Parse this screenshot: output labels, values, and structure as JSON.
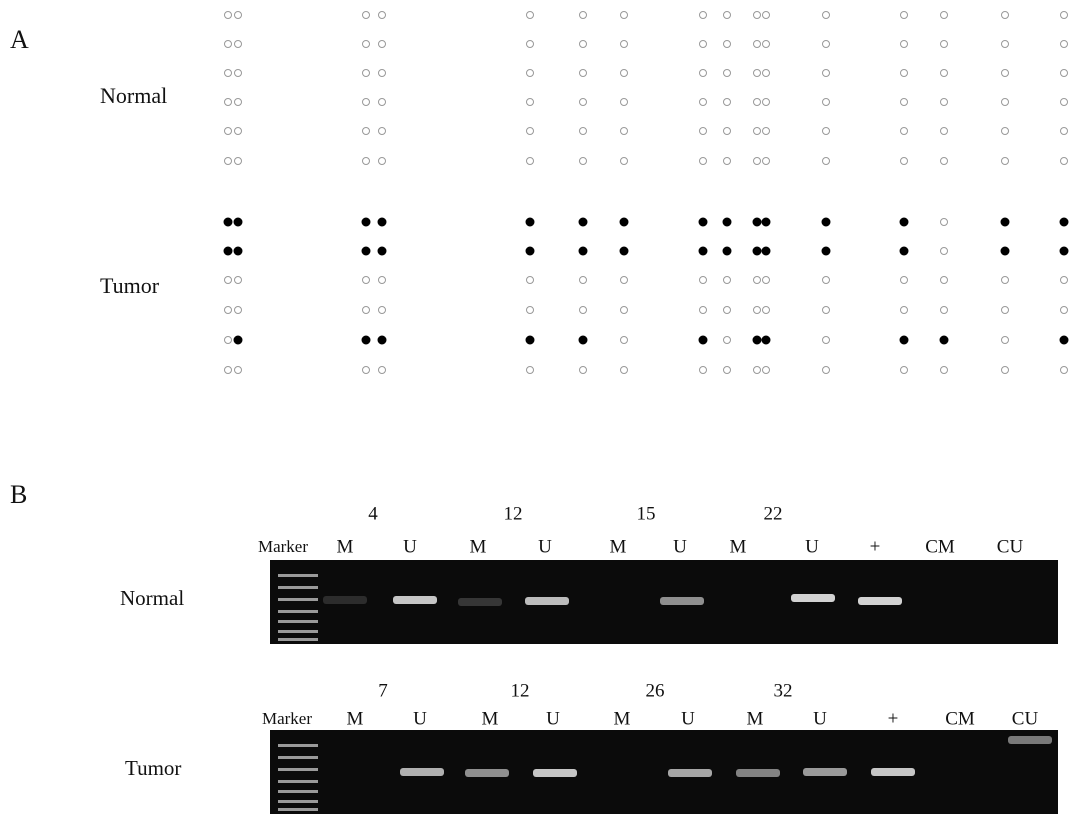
{
  "panel_a": {
    "label": "A",
    "normal_label": "Normal",
    "tumor_label": "Tumor",
    "normal": [
      [
        0,
        0,
        0,
        0,
        0,
        0,
        0,
        0,
        0,
        0,
        0,
        0,
        0,
        0,
        0,
        0
      ],
      [
        0,
        0,
        0,
        0,
        0,
        0,
        0,
        0,
        0,
        0,
        0,
        0,
        0,
        0,
        0,
        0
      ],
      [
        0,
        0,
        0,
        0,
        0,
        0,
        0,
        0,
        0,
        0,
        0,
        0,
        0,
        0,
        0,
        0
      ],
      [
        0,
        0,
        0,
        0,
        0,
        0,
        0,
        0,
        0,
        0,
        0,
        0,
        0,
        0,
        0,
        0
      ],
      [
        0,
        0,
        0,
        0,
        0,
        0,
        0,
        0,
        0,
        0,
        0,
        0,
        0,
        0,
        0,
        0
      ],
      [
        0,
        0,
        0,
        0,
        0,
        0,
        0,
        0,
        0,
        0,
        0,
        0,
        0,
        0,
        0,
        0
      ]
    ],
    "tumor": [
      [
        1,
        1,
        1,
        1,
        1,
        1,
        1,
        1,
        1,
        1,
        1,
        1,
        1,
        0,
        1,
        1
      ],
      [
        1,
        1,
        1,
        1,
        1,
        1,
        1,
        1,
        1,
        1,
        1,
        1,
        1,
        0,
        1,
        1
      ],
      [
        0,
        0,
        0,
        0,
        0,
        0,
        0,
        0,
        0,
        0,
        0,
        0,
        0,
        0,
        0,
        0
      ],
      [
        0,
        0,
        0,
        0,
        0,
        0,
        0,
        0,
        0,
        0,
        0,
        0,
        0,
        0,
        0,
        0
      ],
      [
        0,
        1,
        1,
        1,
        1,
        1,
        0,
        1,
        0,
        1,
        1,
        0,
        1,
        1,
        0,
        1
      ],
      [
        0,
        0,
        0,
        0,
        0,
        0,
        0,
        0,
        0,
        0,
        0,
        0,
        0,
        0,
        0,
        0
      ]
    ]
  },
  "panel_b": {
    "label": "B",
    "gels": [
      {
        "label": "Normal",
        "sample_numbers": [
          "4",
          "12",
          "15",
          "22"
        ],
        "lanes": [
          "Marker",
          "M",
          "U",
          "M",
          "U",
          "M",
          "U",
          "M",
          "U",
          "+",
          "CM",
          "CU"
        ]
      },
      {
        "label": "Tumor",
        "sample_numbers": [
          "7",
          "12",
          "26",
          "32"
        ],
        "lanes": [
          "Marker",
          "M",
          "U",
          "M",
          "U",
          "M",
          "U",
          "M",
          "U",
          "+",
          "CM",
          "CU"
        ]
      }
    ]
  }
}
